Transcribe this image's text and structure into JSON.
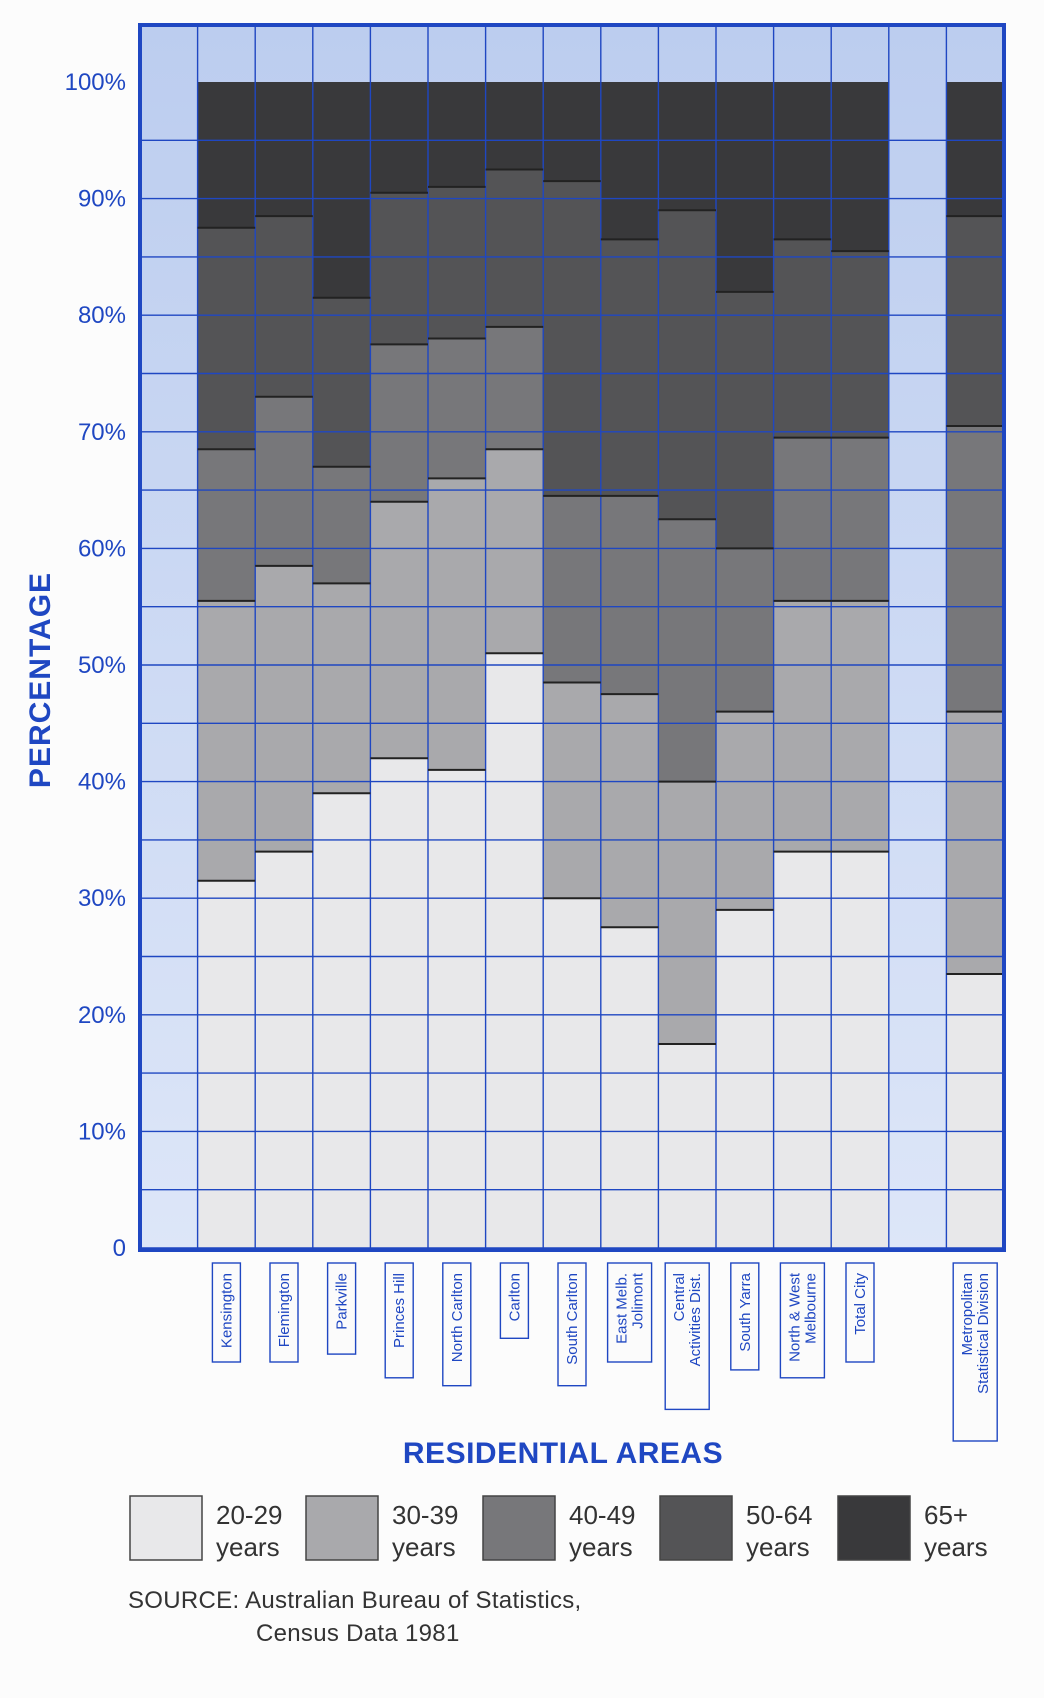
{
  "chart_data": {
    "type": "bar",
    "stacked": true,
    "xlabel": "RESIDENTIAL AREAS",
    "ylabel": "PERCENTAGE",
    "ylim": [
      0,
      100
    ],
    "yticks": [
      "0",
      "10%",
      "20%",
      "30%",
      "40%",
      "50%",
      "60%",
      "70%",
      "80%",
      "90%",
      "100%"
    ],
    "grid": true,
    "categories": [
      [
        "Kensington"
      ],
      [
        "Flemington"
      ],
      [
        "Parkville"
      ],
      [
        "Princes Hill"
      ],
      [
        "North Carlton"
      ],
      [
        "Carlton"
      ],
      [
        "South Carlton"
      ],
      [
        "East Melb.",
        "Jolimont"
      ],
      [
        "Central",
        "Activities Dist."
      ],
      [
        "South Yarra"
      ],
      [
        "North & West",
        "Melbourne"
      ],
      [
        "Total City"
      ],
      [],
      [
        "Metropolitan",
        "Statistical Division"
      ]
    ],
    "series": [
      {
        "name": "20-29 years",
        "values": [
          31.5,
          34,
          39,
          42,
          41,
          51,
          30,
          27.5,
          17.5,
          29,
          34,
          34,
          null,
          23.5
        ]
      },
      {
        "name": "30-39 years",
        "values": [
          24,
          24.5,
          18,
          22,
          25,
          17.5,
          18.5,
          20,
          22.5,
          17,
          21.5,
          21.5,
          null,
          22.5
        ]
      },
      {
        "name": "40-49 years",
        "values": [
          13,
          14.5,
          10,
          13.5,
          12,
          10.5,
          16,
          17,
          22.5,
          14,
          14,
          14,
          null,
          24.5
        ]
      },
      {
        "name": "50-64 years",
        "values": [
          19,
          15.5,
          14.5,
          13,
          13,
          13.5,
          27,
          22,
          26.5,
          22,
          17,
          16,
          null,
          18
        ]
      },
      {
        "name": "65+ years",
        "values": [
          12.5,
          11.5,
          18.5,
          9.5,
          9,
          7.5,
          8.5,
          13.5,
          11,
          18,
          13.5,
          14.5,
          null,
          11.5
        ]
      }
    ],
    "legend": [
      {
        "line1": "20-29",
        "line2": "years",
        "color": "#e8e8ea"
      },
      {
        "line1": "30-39",
        "line2": "years",
        "color": "#a9a9ac"
      },
      {
        "line1": "40-49",
        "line2": "years",
        "color": "#77777a"
      },
      {
        "line1": "50-64",
        "line2": "years",
        "color": "#545456"
      },
      {
        "line1": "65+",
        "line2": "years",
        "color": "#39393b"
      }
    ],
    "legend_position": "bottom",
    "colors": {
      "accent": "#1f47c2",
      "background": "#c8d6f2",
      "grid": "#1f47c2"
    }
  },
  "source": {
    "line1": "SOURCE: Australian Bureau of Statistics,",
    "line2": "Census Data 1981"
  }
}
